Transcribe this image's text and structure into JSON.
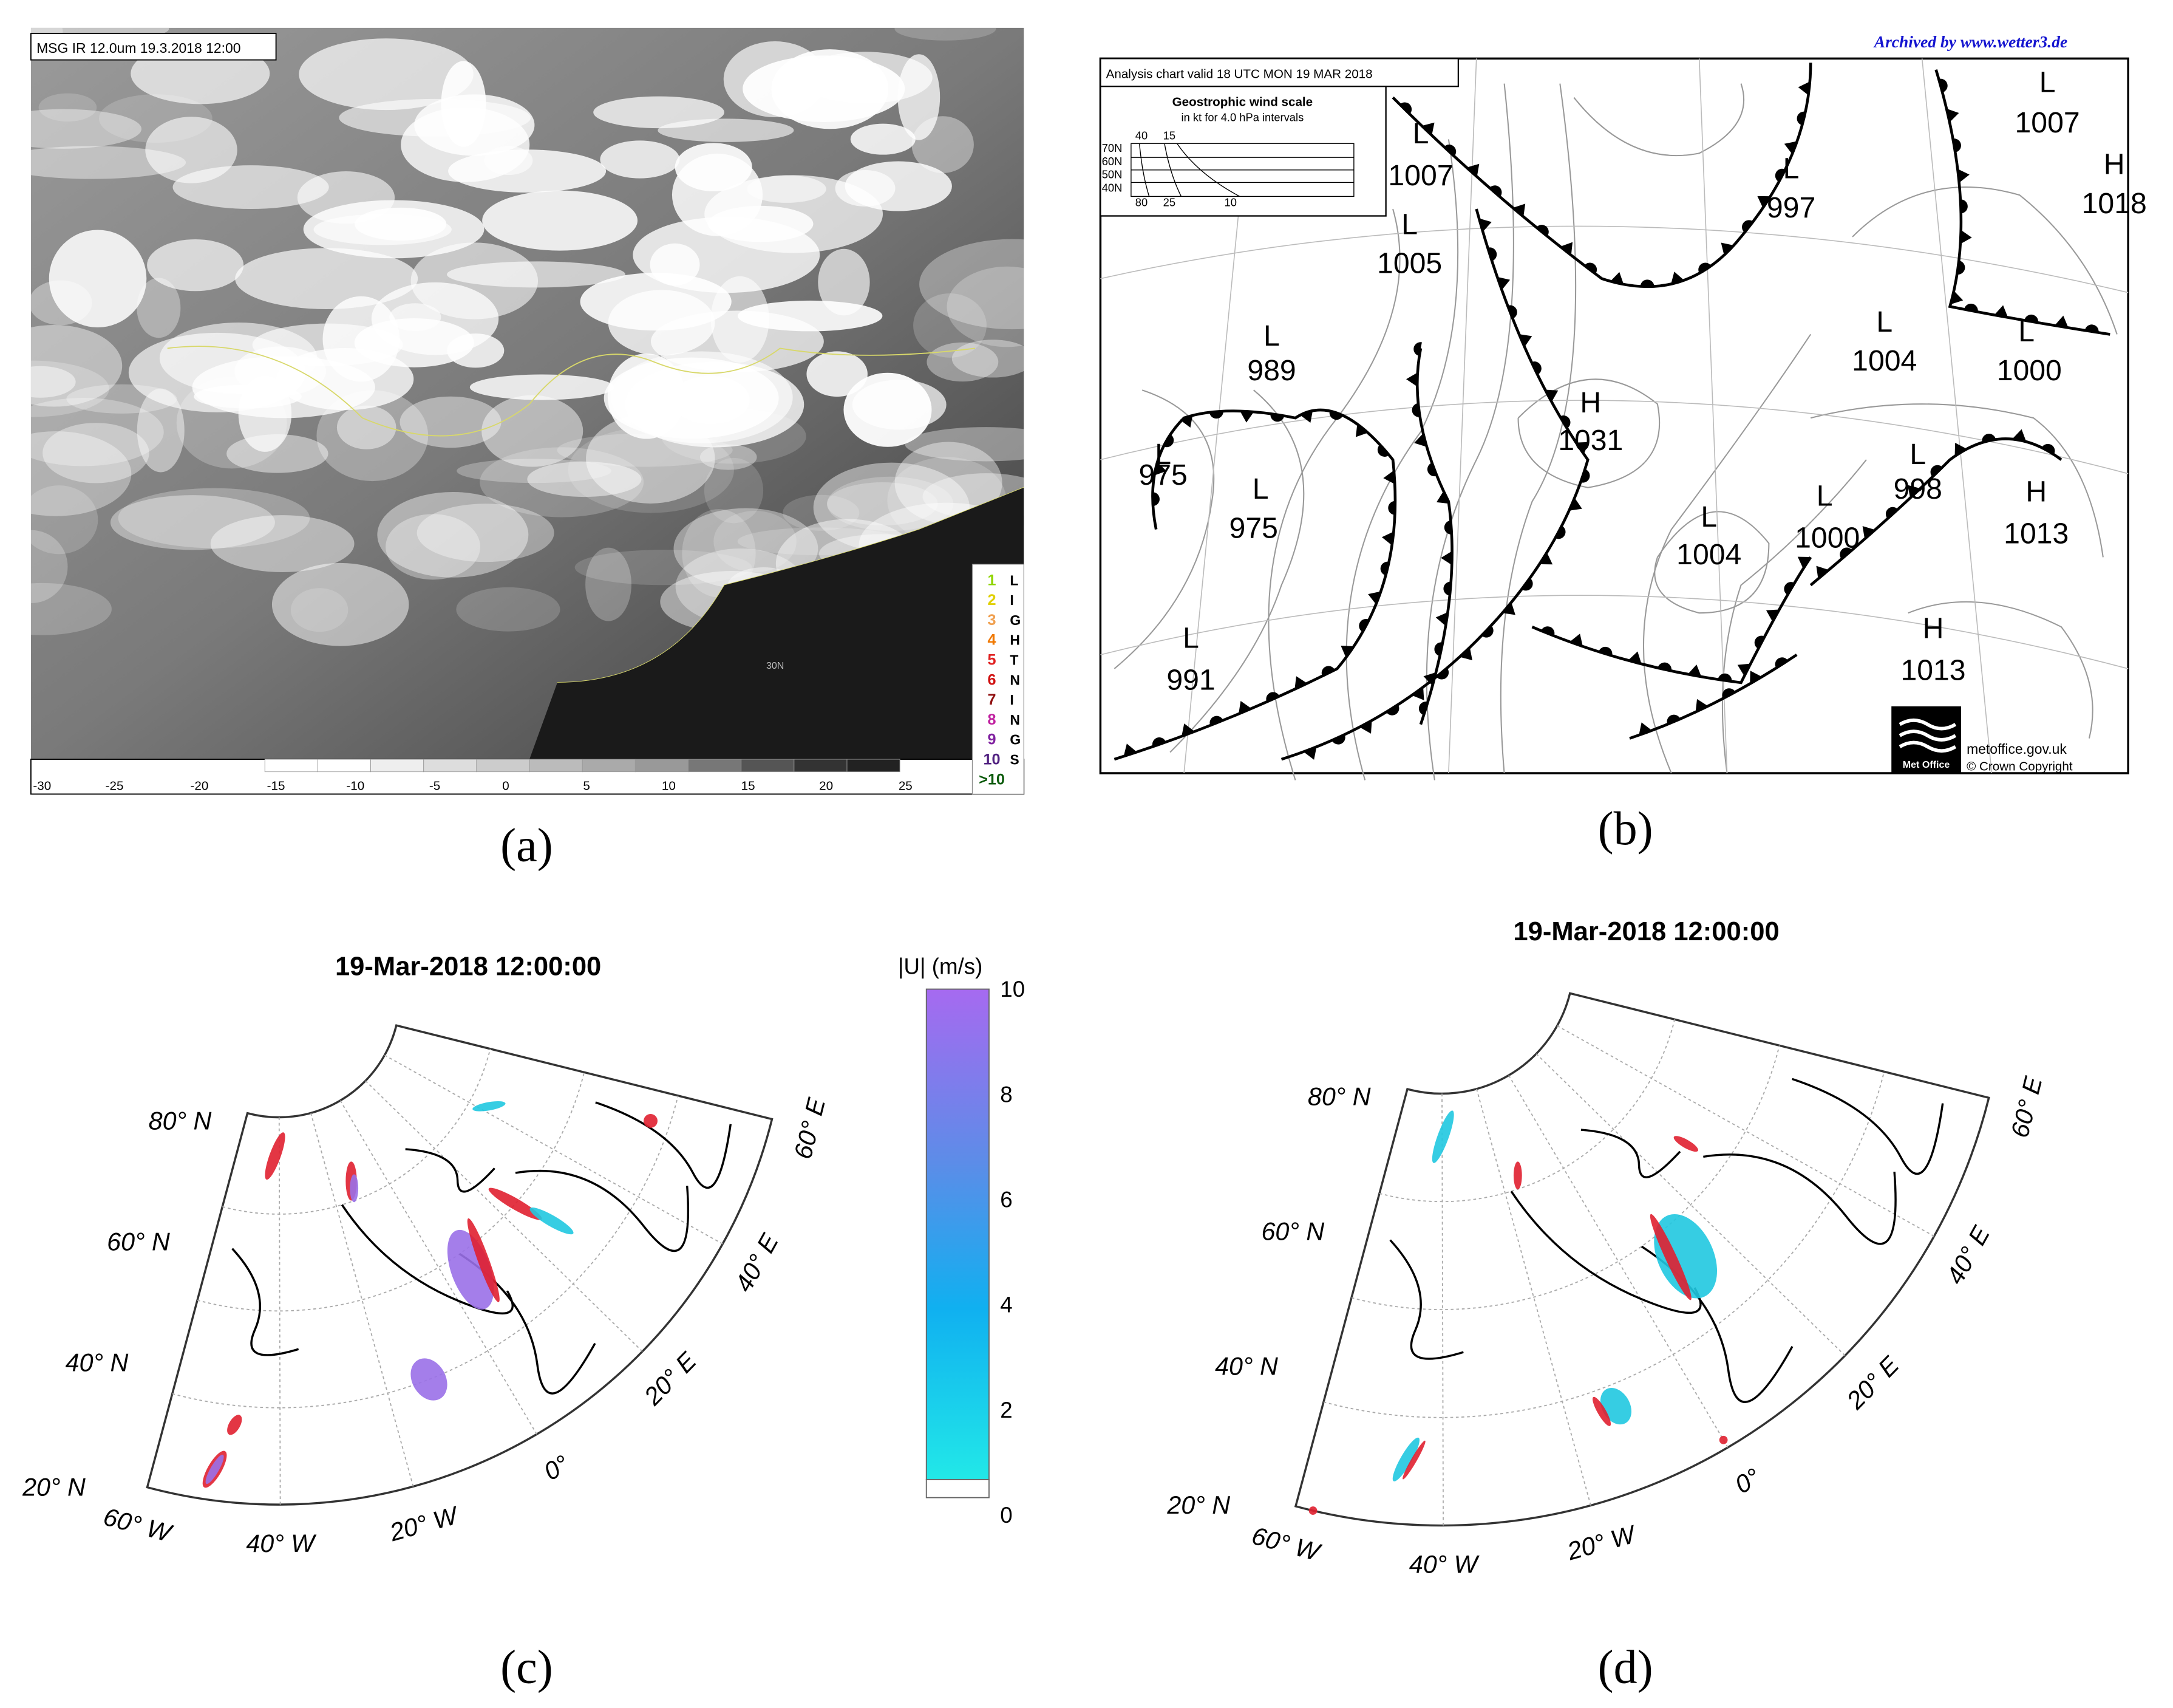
{
  "panel_a": {
    "label": "(a)",
    "header": "MSG IR 12.0um  19.3.2018 12:00",
    "grid_label": "30N",
    "scale_ticks": [
      -30,
      -25,
      -20,
      -15,
      -10,
      -5,
      0,
      5,
      10,
      15,
      20,
      25
    ],
    "lightning_counts": [
      "1",
      "2",
      "3",
      "4",
      "5",
      "6",
      "7",
      "8",
      "9",
      "10",
      ">10"
    ],
    "lightning_letters": [
      "L",
      "I",
      "G",
      "H",
      "T",
      "N",
      "I",
      "N",
      "G",
      "S"
    ]
  },
  "panel_b": {
    "label": "(b)",
    "archive": "Archived by www.wetter3.de",
    "header": "Analysis chart  valid 18 UTC MON 19  MAR 2018",
    "wind_scale": {
      "title": "Geostrophic wind scale",
      "subtitle": "in kt for 4.0 hPa intervals",
      "latitudes": [
        "70N",
        "60N",
        "50N",
        "40N"
      ],
      "top_speeds": [
        40,
        15
      ],
      "bottom_speeds": [
        80,
        25,
        10
      ]
    },
    "centers": [
      {
        "type": "L",
        "pressure": 1007
      },
      {
        "type": "L",
        "pressure": 1005
      },
      {
        "type": "L",
        "pressure": 989
      },
      {
        "type": "L",
        "pressure": 975
      },
      {
        "type": "L",
        "pressure": 975
      },
      {
        "type": "L",
        "pressure": 991
      },
      {
        "type": "H",
        "pressure": 1031
      },
      {
        "type": "L",
        "pressure": 997
      },
      {
        "type": "L",
        "pressure": 1004
      },
      {
        "type": "L",
        "pressure": 1000
      },
      {
        "type": "L",
        "pressure": 998
      },
      {
        "type": "L",
        "pressure": 1004
      },
      {
        "type": "L",
        "pressure": 1000
      },
      {
        "type": "H",
        "pressure": 1013
      },
      {
        "type": "H",
        "pressure": 1013
      },
      {
        "type": "L",
        "pressure": 1007
      },
      {
        "type": "H",
        "pressure": 1018
      }
    ],
    "logo": "Met Office",
    "site": "metoffice.gov.uk",
    "copyright": "© Crown Copyright"
  },
  "panel_c": {
    "label": "(c)",
    "title": "19-Mar-2018 12:00:00",
    "colorbar_label": "|U| (m/s)",
    "colorbar_ticks": [
      0,
      2,
      4,
      6,
      8,
      10
    ],
    "lat_labels": [
      "80° N",
      "60° N",
      "40° N",
      "20° N"
    ],
    "lon_labels": [
      "60° W",
      "40° W",
      "20° W",
      "0°",
      "20° E",
      "40° E",
      "60° E"
    ]
  },
  "panel_d": {
    "label": "(d)",
    "title": "19-Mar-2018 12:00:00",
    "lat_labels": [
      "80° N",
      "60° N",
      "40° N",
      "20° N"
    ],
    "lon_labels": [
      "60° W",
      "40° W",
      "20° W",
      "0°",
      "20° E",
      "40° E",
      "60° E"
    ]
  }
}
